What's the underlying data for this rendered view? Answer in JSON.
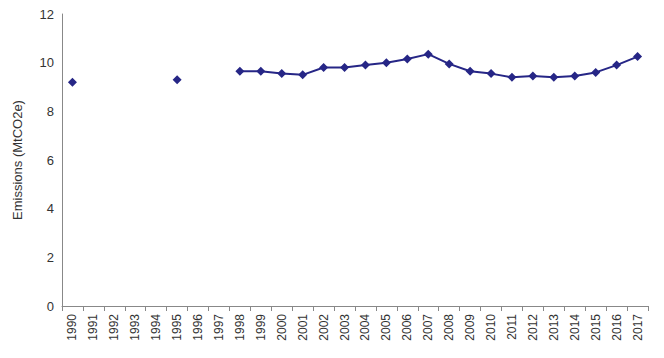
{
  "chart_data": {
    "type": "line",
    "y_label": "Emissions (MtCO2e)",
    "categories": [
      "1990",
      "1991",
      "1992",
      "1993",
      "1994",
      "1995",
      "1996",
      "1997",
      "1998",
      "1999",
      "2000",
      "2001",
      "2002",
      "2003",
      "2004",
      "2005",
      "2006",
      "2007",
      "2008",
      "2009",
      "2010",
      "2011",
      "2012",
      "2013",
      "2014",
      "2015",
      "2016",
      "2017"
    ],
    "values": [
      9.2,
      null,
      null,
      null,
      null,
      9.3,
      null,
      null,
      9.65,
      9.65,
      9.55,
      9.5,
      9.8,
      9.8,
      9.9,
      10.0,
      10.15,
      10.35,
      9.95,
      9.65,
      9.55,
      9.4,
      9.45,
      9.4,
      9.45,
      9.6,
      9.9,
      10.25
    ],
    "color": "#262686",
    "marker": "diamond",
    "line_style": "solid",
    "ylim": [
      0,
      12
    ],
    "yticks": [
      0,
      2,
      4,
      6,
      8,
      10,
      12
    ],
    "grid": false
  }
}
